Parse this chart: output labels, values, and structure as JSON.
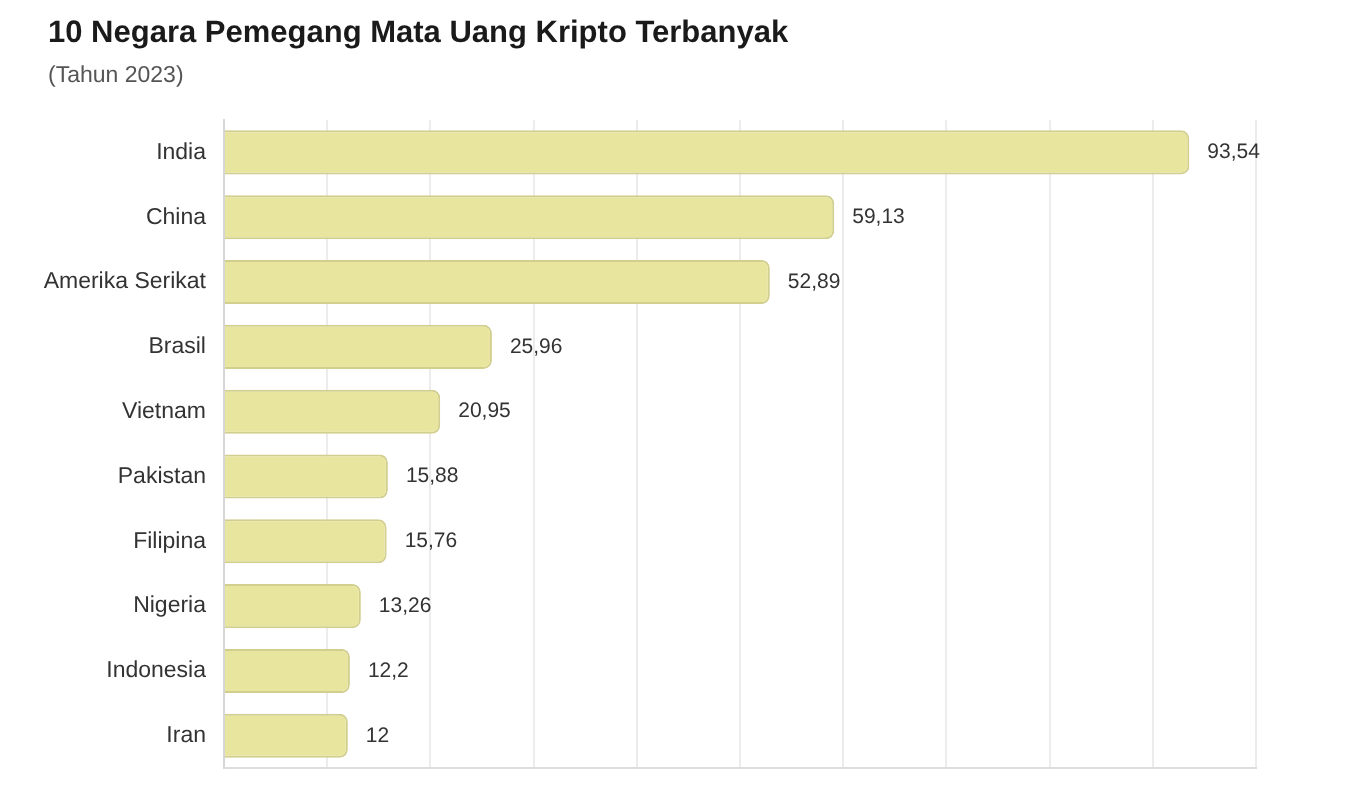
{
  "chart_data": {
    "type": "bar",
    "orientation": "horizontal",
    "title": "10 Negara Pemegang Mata Uang Kripto Terbanyak",
    "subtitle": "(Tahun 2023)",
    "categories": [
      "India",
      "China",
      "Amerika Serikat",
      "Brasil",
      "Vietnam",
      "Pakistan",
      "Filipina",
      "Nigeria",
      "Indonesia",
      "Iran"
    ],
    "values": [
      93.54,
      59.13,
      52.89,
      25.96,
      20.95,
      15.88,
      15.76,
      13.26,
      12.2,
      12
    ],
    "value_labels": [
      "93,54",
      "59,13",
      "52,89",
      "25,96",
      "20,95",
      "15,88",
      "15,76",
      "13,26",
      "12,2",
      "12"
    ],
    "color": "#e8e59e",
    "xlim": [
      0,
      100
    ],
    "xticks": [
      {
        "value": 0,
        "label": null
      },
      {
        "value": 10,
        "label": null
      },
      {
        "value": 20,
        "label": null
      },
      {
        "value": 30,
        "label": null
      },
      {
        "value": 40,
        "label": null
      },
      {
        "value": 50,
        "label": null
      },
      {
        "value": 60,
        "label": null
      },
      {
        "value": 70,
        "label": null
      },
      {
        "value": 80,
        "label": null
      },
      {
        "value": 90,
        "label": null
      },
      {
        "value": 100,
        "label": null
      }
    ],
    "grid": "x",
    "tick_labels": "y"
  }
}
